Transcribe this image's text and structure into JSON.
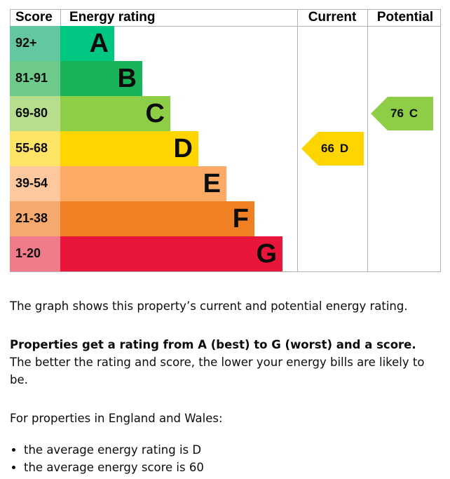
{
  "table": {
    "headers": [
      "Score",
      "Energy rating",
      "Current",
      "Potential"
    ],
    "bands": [
      {
        "score": "92+",
        "rating": "A",
        "color": "#00c781",
        "score_color": "#63c8a0"
      },
      {
        "score": "81-91",
        "rating": "B",
        "color": "#19b459",
        "score_color": "#6ecb8b"
      },
      {
        "score": "69-80",
        "rating": "C",
        "color": "#8dce46",
        "score_color": "#b6de8c"
      },
      {
        "score": "55-68",
        "rating": "D",
        "color": "#ffd500",
        "score_color": "#ffe466"
      },
      {
        "score": "39-54",
        "rating": "E",
        "color": "#fcaa65",
        "score_color": "#fdc89d"
      },
      {
        "score": "21-38",
        "rating": "F",
        "color": "#ef8023",
        "score_color": "#f4aa6e"
      },
      {
        "score": "1-20",
        "rating": "G",
        "color": "#e9153b",
        "score_color": "#f07b8a"
      }
    ],
    "current": {
      "score": 66,
      "rating": "D"
    },
    "potential": {
      "score": 76,
      "rating": "C"
    }
  },
  "text": {
    "intro": "The graph shows this property’s current and potential energy rating.",
    "rating_bold": "Properties get a rating from A (best) to G (worst) and a score.",
    "rating_rest": "The better the rating and score, the lower your energy bills are likely to be.",
    "england": "For properties in England and Wales:",
    "bullets": [
      "the average energy rating is D",
      "the average energy score is 60"
    ]
  }
}
